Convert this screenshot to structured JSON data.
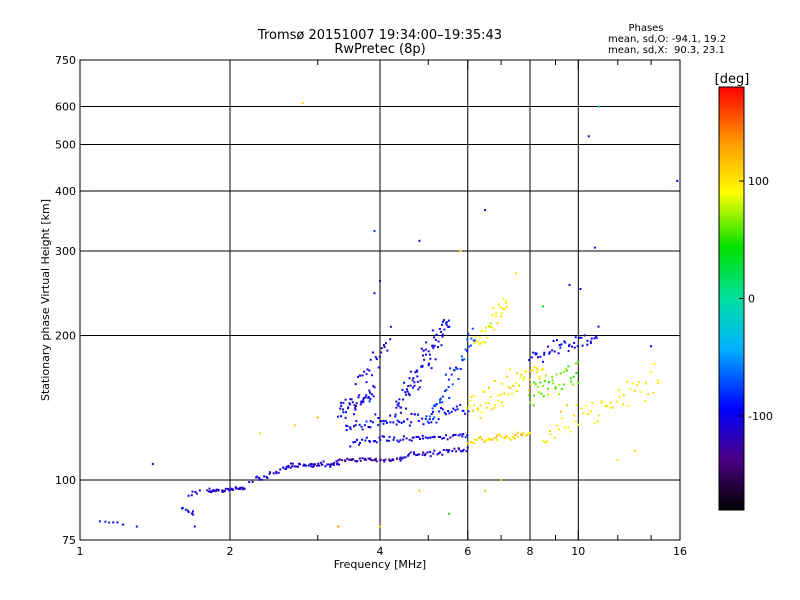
{
  "chart_data": {
    "type": "scatter",
    "title": "Tromsø 20151007 19:34:00–19:35:43",
    "subtitle": "RwPretec (8p)",
    "xlabel": "Frequency [MHz]",
    "ylabel": "Stationary phase Virtual Height [km]",
    "x_scale": "log",
    "y_scale": "log",
    "xlim": [
      1,
      16
    ],
    "ylim": [
      75,
      750
    ],
    "x_ticks": [
      1,
      2,
      4,
      6,
      8,
      10,
      16
    ],
    "x_minor_ticks": [
      3,
      5,
      7,
      9,
      12,
      14
    ],
    "y_ticks": [
      75,
      100,
      200,
      300,
      400,
      500,
      600,
      750
    ],
    "grid": true,
    "grid_x": [
      2,
      4,
      6,
      8,
      10
    ],
    "grid_y": [
      100,
      200,
      300,
      400,
      500,
      600
    ],
    "phases": {
      "title": "Phases",
      "line_o": "mean, sd,O: -94.1, 19.2",
      "line_x": "mean, sd,X:  90.3, 23.1"
    },
    "colorbar": {
      "label": "[deg]",
      "range": [
        -180,
        180
      ],
      "ticks": [
        100,
        0,
        -100
      ],
      "tick_labels": [
        "100",
        "0",
        "-100"
      ]
    },
    "traces": [
      {
        "x0": 1.1,
        "x1": 1.22,
        "h0": 82,
        "h1": 81,
        "count": 6,
        "phase": -90,
        "spread": 0.005
      },
      {
        "x0": 1.6,
        "x1": 1.7,
        "h0": 88,
        "h1": 85,
        "count": 8,
        "phase": -100,
        "spread": 0.01
      },
      {
        "x0": 1.65,
        "x1": 1.75,
        "h0": 93,
        "h1": 95,
        "count": 6,
        "phase": -110,
        "spread": 0.01
      },
      {
        "x0": 1.8,
        "x1": 2.15,
        "h0": 95,
        "h1": 96,
        "count": 40,
        "phase": -110,
        "spread": 0.006
      },
      {
        "x0": 2.2,
        "x1": 2.6,
        "h0": 99,
        "h1": 106,
        "count": 20,
        "phase": -105,
        "spread": 0.01
      },
      {
        "x0": 2.6,
        "x1": 3.3,
        "h0": 107,
        "h1": 108,
        "count": 45,
        "phase": -110,
        "spread": 0.008
      },
      {
        "x0": 3.3,
        "x1": 4.4,
        "h0": 110,
        "h1": 110,
        "count": 45,
        "phase": -125,
        "spread": 0.006
      },
      {
        "x0": 4.4,
        "x1": 6.0,
        "h0": 112,
        "h1": 116,
        "count": 40,
        "phase": -110,
        "spread": 0.01
      },
      {
        "x0": 3.5,
        "x1": 6.0,
        "h0": 120,
        "h1": 124,
        "count": 60,
        "phase": -100,
        "spread": 0.012
      },
      {
        "x0": 3.4,
        "x1": 6.0,
        "h0": 128,
        "h1": 140,
        "count": 70,
        "phase": -95,
        "spread": 0.025
      },
      {
        "x0": 3.3,
        "x1": 3.9,
        "h0": 140,
        "h1": 150,
        "count": 45,
        "phase": -100,
        "spread": 0.03
      },
      {
        "x0": 3.6,
        "x1": 4.2,
        "h0": 160,
        "h1": 195,
        "count": 25,
        "phase": -110,
        "spread": 0.04
      },
      {
        "x0": 4.3,
        "x1": 5.5,
        "h0": 140,
        "h1": 215,
        "count": 80,
        "phase": -100,
        "spread": 0.06
      },
      {
        "x0": 5.0,
        "x1": 6.2,
        "h0": 130,
        "h1": 200,
        "count": 45,
        "phase": -80,
        "spread": 0.05
      },
      {
        "x0": 6.0,
        "x1": 8.0,
        "h0": 120,
        "h1": 125,
        "count": 40,
        "phase": 110,
        "spread": 0.012
      },
      {
        "x0": 6.0,
        "x1": 8.5,
        "h0": 140,
        "h1": 170,
        "count": 60,
        "phase": 100,
        "spread": 0.05
      },
      {
        "x0": 6.2,
        "x1": 7.2,
        "h0": 190,
        "h1": 235,
        "count": 35,
        "phase": 95,
        "spread": 0.04
      },
      {
        "x0": 8.0,
        "x1": 11.0,
        "h0": 180,
        "h1": 200,
        "count": 45,
        "phase": -100,
        "spread": 0.03
      },
      {
        "x0": 8.0,
        "x1": 10.0,
        "h0": 150,
        "h1": 170,
        "count": 40,
        "phase": 60,
        "spread": 0.05
      },
      {
        "x0": 8.5,
        "x1": 14.5,
        "h0": 125,
        "h1": 160,
        "count": 55,
        "phase": 100,
        "spread": 0.06
      }
    ],
    "scatter": [
      {
        "x": 2.8,
        "h": 610,
        "phase": 110
      },
      {
        "x": 10.5,
        "h": 520,
        "phase": -110
      },
      {
        "x": 15.8,
        "h": 420,
        "phase": -100
      },
      {
        "x": 6.5,
        "h": 365,
        "phase": -110
      },
      {
        "x": 3.9,
        "h": 330,
        "phase": -80
      },
      {
        "x": 4.8,
        "h": 315,
        "phase": -110
      },
      {
        "x": 5.8,
        "h": 300,
        "phase": 100
      },
      {
        "x": 10.8,
        "h": 305,
        "phase": -90
      },
      {
        "x": 9.6,
        "h": 255,
        "phase": -110
      },
      {
        "x": 10.1,
        "h": 250,
        "phase": -110
      },
      {
        "x": 4.0,
        "h": 260,
        "phase": -110
      },
      {
        "x": 3.9,
        "h": 245,
        "phase": -110
      },
      {
        "x": 1.4,
        "h": 108,
        "phase": -110
      },
      {
        "x": 3.3,
        "h": 80,
        "phase": 140
      },
      {
        "x": 4.0,
        "h": 80,
        "phase": 110
      },
      {
        "x": 4.8,
        "h": 95,
        "phase": 120
      },
      {
        "x": 5.5,
        "h": 85,
        "phase": 50
      },
      {
        "x": 2.7,
        "h": 130,
        "phase": 110
      },
      {
        "x": 2.3,
        "h": 125,
        "phase": 80
      },
      {
        "x": 1.7,
        "h": 80,
        "phase": -100
      },
      {
        "x": 1.3,
        "h": 80,
        "phase": -90
      },
      {
        "x": 3.0,
        "h": 135,
        "phase": 120
      },
      {
        "x": 7.0,
        "h": 100,
        "phase": 110
      },
      {
        "x": 6.5,
        "h": 95,
        "phase": 120
      },
      {
        "x": 12.0,
        "h": 110,
        "phase": 100
      },
      {
        "x": 13.0,
        "h": 115,
        "phase": 100
      },
      {
        "x": 14.0,
        "h": 190,
        "phase": -100
      },
      {
        "x": 8.5,
        "h": 230,
        "phase": 40
      },
      {
        "x": 7.5,
        "h": 270,
        "phase": 100
      },
      {
        "x": 11.0,
        "h": 600,
        "phase": -20
      }
    ]
  }
}
